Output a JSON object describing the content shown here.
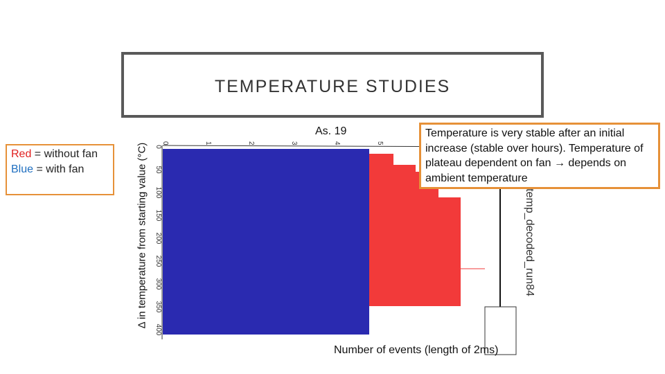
{
  "title": "TEMPERATURE STUDIES",
  "legend": [
    {
      "word": "Red",
      "rest": " = without fan"
    },
    {
      "word": "Blue",
      "rest": " = with fan"
    }
  ],
  "y_label": "Δ in temperature from starting value (°C)",
  "x_label": "Number of events (length of 2ms)",
  "plot_label": "As. 19",
  "note": "Temperature is very stable after an initial increase (stable over hours). Temperature of plateau dependent on fan → depends on ambient temperature",
  "image": {
    "histogram_title": "temp_decoded_run84",
    "top_ticks": [
      "0",
      "1",
      "2",
      "3",
      "4",
      "5"
    ],
    "left_ticks": [
      "0",
      "50",
      "100",
      "150",
      "200",
      "250",
      "300",
      "350",
      "400"
    ]
  }
}
